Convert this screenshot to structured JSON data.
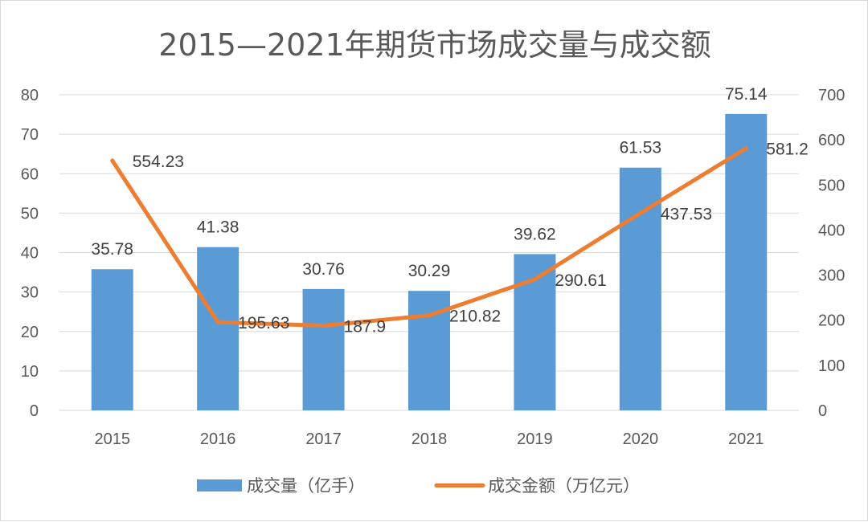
{
  "chart_data": {
    "type": "bar+line",
    "title": "2015—2021年期货市场成交量与成交额",
    "categories": [
      "2015",
      "2016",
      "2017",
      "2018",
      "2019",
      "2020",
      "2021"
    ],
    "series": [
      {
        "name": "成交量（亿手）",
        "type": "bar",
        "axis": "left",
        "color": "#5b9bd5",
        "values": [
          35.78,
          41.38,
          30.76,
          30.29,
          39.62,
          61.53,
          75.14
        ],
        "labels": [
          "35.78",
          "41.38",
          "30.76",
          "30.29",
          "39.62",
          "61.53",
          "75.14"
        ]
      },
      {
        "name": "成交金额（万亿元）",
        "type": "line",
        "axis": "right",
        "color": "#ed7d31",
        "values": [
          554.23,
          195.63,
          187.9,
          210.82,
          290.61,
          437.53,
          581.2
        ],
        "labels": [
          "554.23",
          "195.63",
          "187.9",
          "210.82",
          "290.61",
          "437.53",
          "581.2"
        ]
      }
    ],
    "y_left": {
      "min": 0,
      "max": 80,
      "step": 10,
      "ticks": [
        "0",
        "10",
        "20",
        "30",
        "40",
        "50",
        "60",
        "70",
        "80"
      ]
    },
    "y_right": {
      "min": 0,
      "max": 700,
      "step": 100,
      "ticks": [
        "0",
        "100",
        "200",
        "300",
        "400",
        "500",
        "600",
        "700"
      ]
    },
    "grid": true,
    "legend_position": "bottom"
  }
}
